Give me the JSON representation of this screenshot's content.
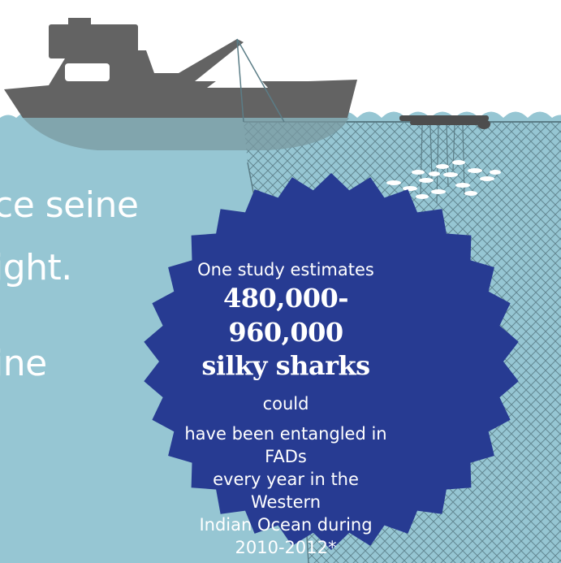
{
  "colors": {
    "water": "#96c6d3",
    "sky": "#ffffff",
    "boat": "#636363",
    "boat_shadow": "#7a9aa0",
    "net": "#5b7d87",
    "badge": "#273b92",
    "text": "#ffffff"
  },
  "left_text": {
    "line1": "ce seine",
    "line2": "ight.",
    "line3": "ine"
  },
  "badge": {
    "intro": "One study estimates",
    "range": "480,000-960,000",
    "species": "silky sharks",
    "species_tail": "could",
    "line4": "have been entangled in FADs",
    "line5": "every year in the Western",
    "line6": "Indian Ocean during",
    "line7": "2010-2012*"
  },
  "icons": {
    "boat": "purse-seine-vessel-icon",
    "net": "purse-seine-net",
    "fad": "fad-raft-icon",
    "fish": "fish-school-icon",
    "badge": "starburst-badge"
  }
}
